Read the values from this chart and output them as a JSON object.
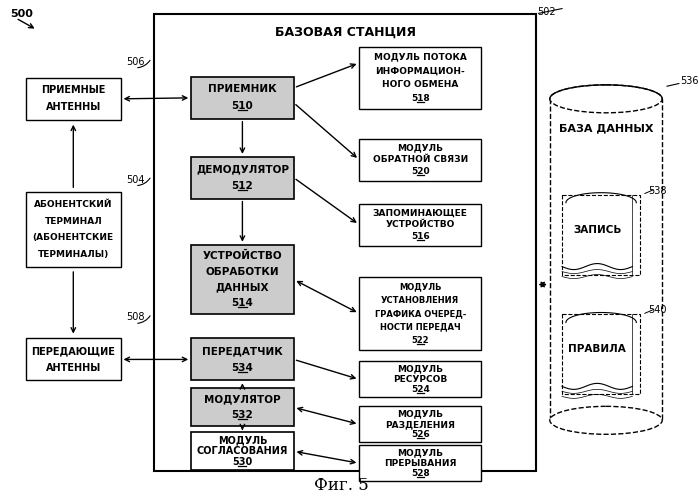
{
  "title": "БАЗОВАЯ СТАНЦИЯ",
  "fig_label": "500",
  "base_station_label": "502",
  "background": "#ffffff",
  "fig_caption": "Фиг. 5",
  "db_label": "БАЗА ДАННЫХ",
  "db_num": "536",
  "record_label": "ЗАПИСЬ",
  "record_num": "538",
  "rules_label": "ПРАВИЛА",
  "rules_num": "540",
  "label_506": "506",
  "label_504": "504",
  "label_508": "508"
}
